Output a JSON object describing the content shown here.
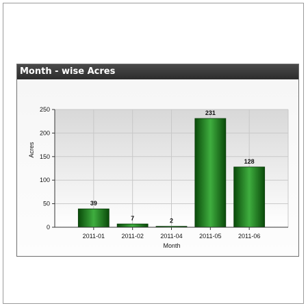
{
  "panel": {
    "title": "Month - wise Acres"
  },
  "colors": {
    "bar_dark": "#0a4a0a",
    "bar_light": "#3fae3f",
    "bar_mid": "#1f7d1f",
    "header_bg": "#333333",
    "grid": "#c8c8c8"
  },
  "chart_data": {
    "type": "bar",
    "title": "Month - wise Acres",
    "xlabel": "Month",
    "ylabel": "Acres",
    "categories": [
      "2011-01",
      "2011-02",
      "2011-04",
      "2011-05",
      "2011-06"
    ],
    "values": [
      39,
      7,
      2,
      231,
      128
    ],
    "data_labels": [
      "39",
      "7",
      "2",
      "231",
      "128"
    ],
    "ylim": [
      0,
      250
    ],
    "yticks": [
      0,
      50,
      100,
      150,
      200,
      250
    ],
    "ytick_labels": [
      "0",
      "50",
      "100",
      "150",
      "200",
      "250"
    ],
    "grid": true
  }
}
